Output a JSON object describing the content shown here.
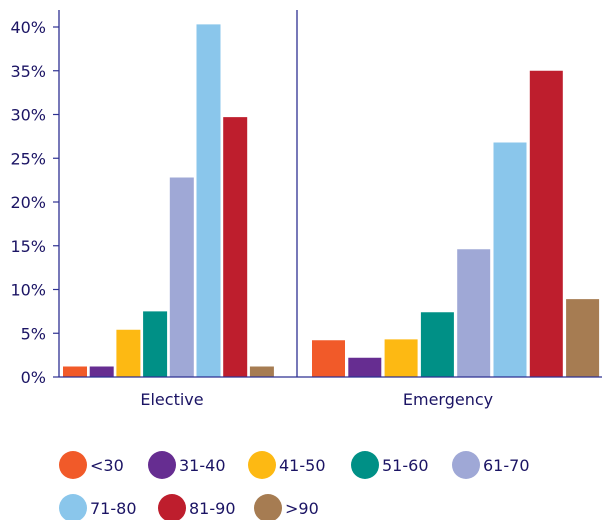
{
  "chart_data": {
    "type": "bar",
    "title": "",
    "xlabel": "",
    "ylabel": "",
    "categories": [
      "Elective",
      "Emergency"
    ],
    "ylim": [
      0,
      40
    ],
    "yticks": [
      0,
      5,
      10,
      15,
      20,
      25,
      30,
      35,
      40
    ],
    "ytick_labels": [
      "0%",
      "5%",
      "10%",
      "15%",
      "20%",
      "25%",
      "30%",
      "35%",
      "40%"
    ],
    "grid": false,
    "legend_position": "bottom",
    "series": [
      {
        "name": "<30",
        "color": "#f15a29",
        "values": [
          1.2,
          4.2
        ]
      },
      {
        "name": "31-40",
        "color": "#662d91",
        "values": [
          1.2,
          2.2
        ]
      },
      {
        "name": "41-50",
        "color": "#fdb913",
        "values": [
          5.4,
          4.3
        ]
      },
      {
        "name": "51-60",
        "color": "#009086",
        "values": [
          7.5,
          7.4
        ]
      },
      {
        "name": "61-70",
        "color": "#9fa8d6",
        "values": [
          22.8,
          14.6
        ]
      },
      {
        "name": "71-80",
        "color": "#8ac6eb",
        "values": [
          40.3,
          26.8
        ]
      },
      {
        "name": "81-90",
        "color": "#be1e2d",
        "values": [
          29.7,
          35.0
        ]
      },
      {
        "name": ">90",
        "color": "#a67c52",
        "values": [
          1.2,
          8.9
        ]
      }
    ],
    "axis_color": "#2e3192",
    "tick_text_color": "#1b1464"
  }
}
